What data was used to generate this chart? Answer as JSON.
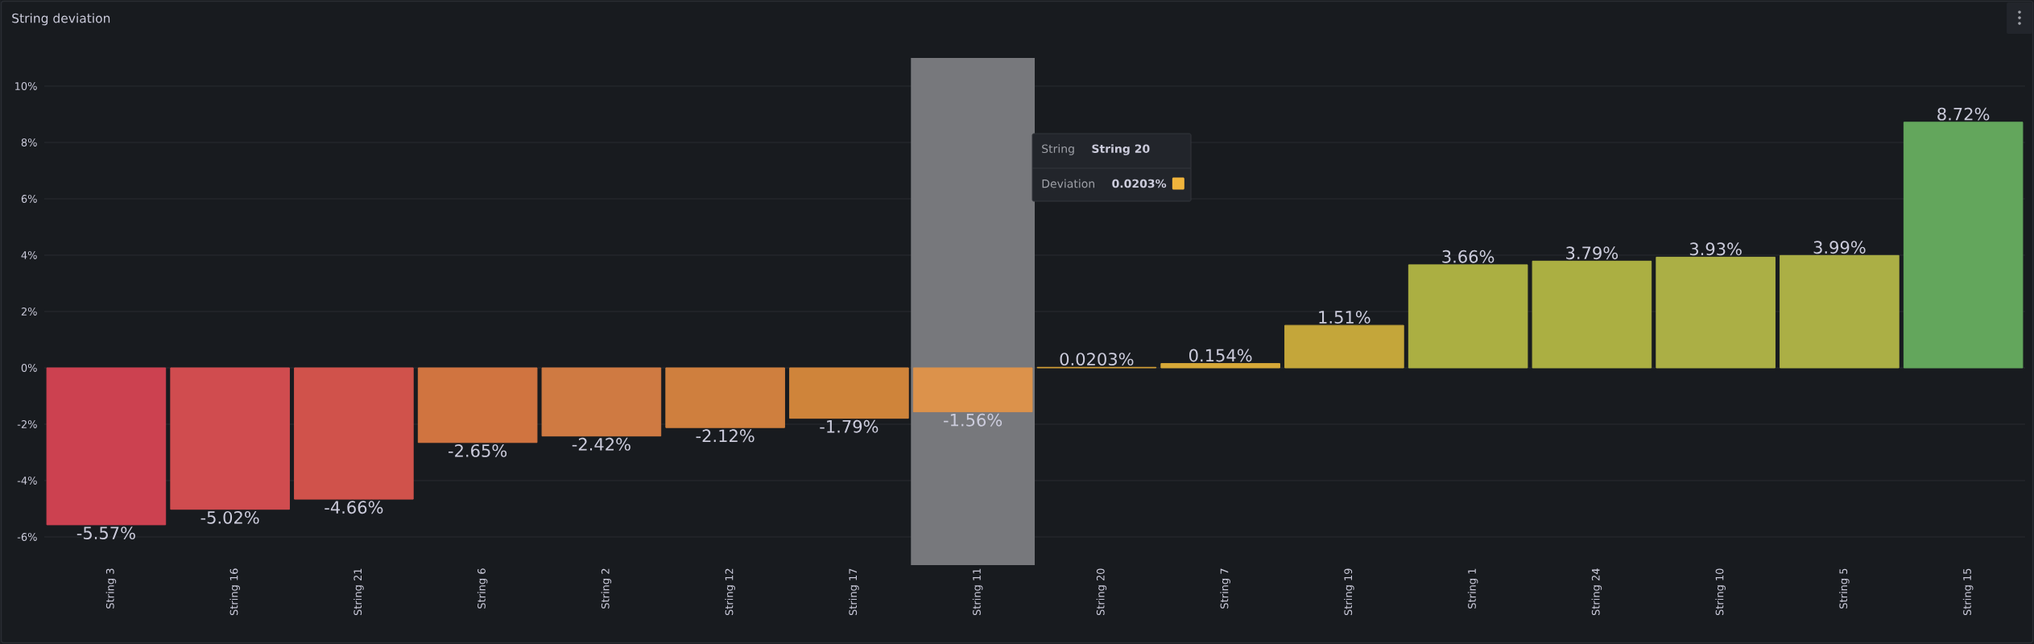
{
  "chart_data": {
    "type": "bar",
    "title": "String deviation",
    "categories": [
      "String 3",
      "String 16",
      "String 21",
      "String 6",
      "String 2",
      "String 12",
      "String 17",
      "String 11",
      "String 20",
      "String 7",
      "String 19",
      "String 1",
      "String 24",
      "String 10",
      "String 5",
      "String 15"
    ],
    "values": [
      -5.57,
      -5.02,
      -4.66,
      -2.65,
      -2.42,
      -2.12,
      -1.79,
      -1.56,
      0.0203,
      0.154,
      1.51,
      3.66,
      3.79,
      3.93,
      3.99,
      8.72
    ],
    "colors": [
      "#cc4150",
      "#d04c4f",
      "#d0524b",
      "#d07440",
      "#cf7a42",
      "#cf7f3e",
      "#cf843a",
      "#dc924b",
      "#d4a035",
      "#d6a838",
      "#c4a63a",
      "#abaf42",
      "#abaf42",
      "#abaf45",
      "#abaf45",
      "#63a65c"
    ],
    "value_labels": [
      "-5.57%",
      "-5.02%",
      "-4.66%",
      "-2.65%",
      "-2.42%",
      "-2.12%",
      "-1.79%",
      "-1.56%",
      "0.0203%",
      "0.154%",
      "1.51%",
      "3.66%",
      "3.79%",
      "3.93%",
      "3.99%",
      "8.72%"
    ],
    "ylim": [
      -7,
      11
    ],
    "yticks": [
      {
        "value": -6,
        "label": "-6%"
      },
      {
        "value": -4,
        "label": "-4%"
      },
      {
        "value": -2,
        "label": "-2%"
      },
      {
        "value": 0,
        "label": "0%"
      },
      {
        "value": 2,
        "label": "2%"
      },
      {
        "value": 4,
        "label": "4%"
      },
      {
        "value": 6,
        "label": "6%"
      },
      {
        "value": 8,
        "label": "8%"
      },
      {
        "value": 10,
        "label": "10%"
      }
    ],
    "grid": "y",
    "bands": [
      {
        "axis": "x",
        "from": "String 11",
        "to": "String 11",
        "color": "#77787c"
      }
    ],
    "annotations": [
      "String",
      "String 20",
      "Deviation",
      "0.0203%"
    ]
  }
}
